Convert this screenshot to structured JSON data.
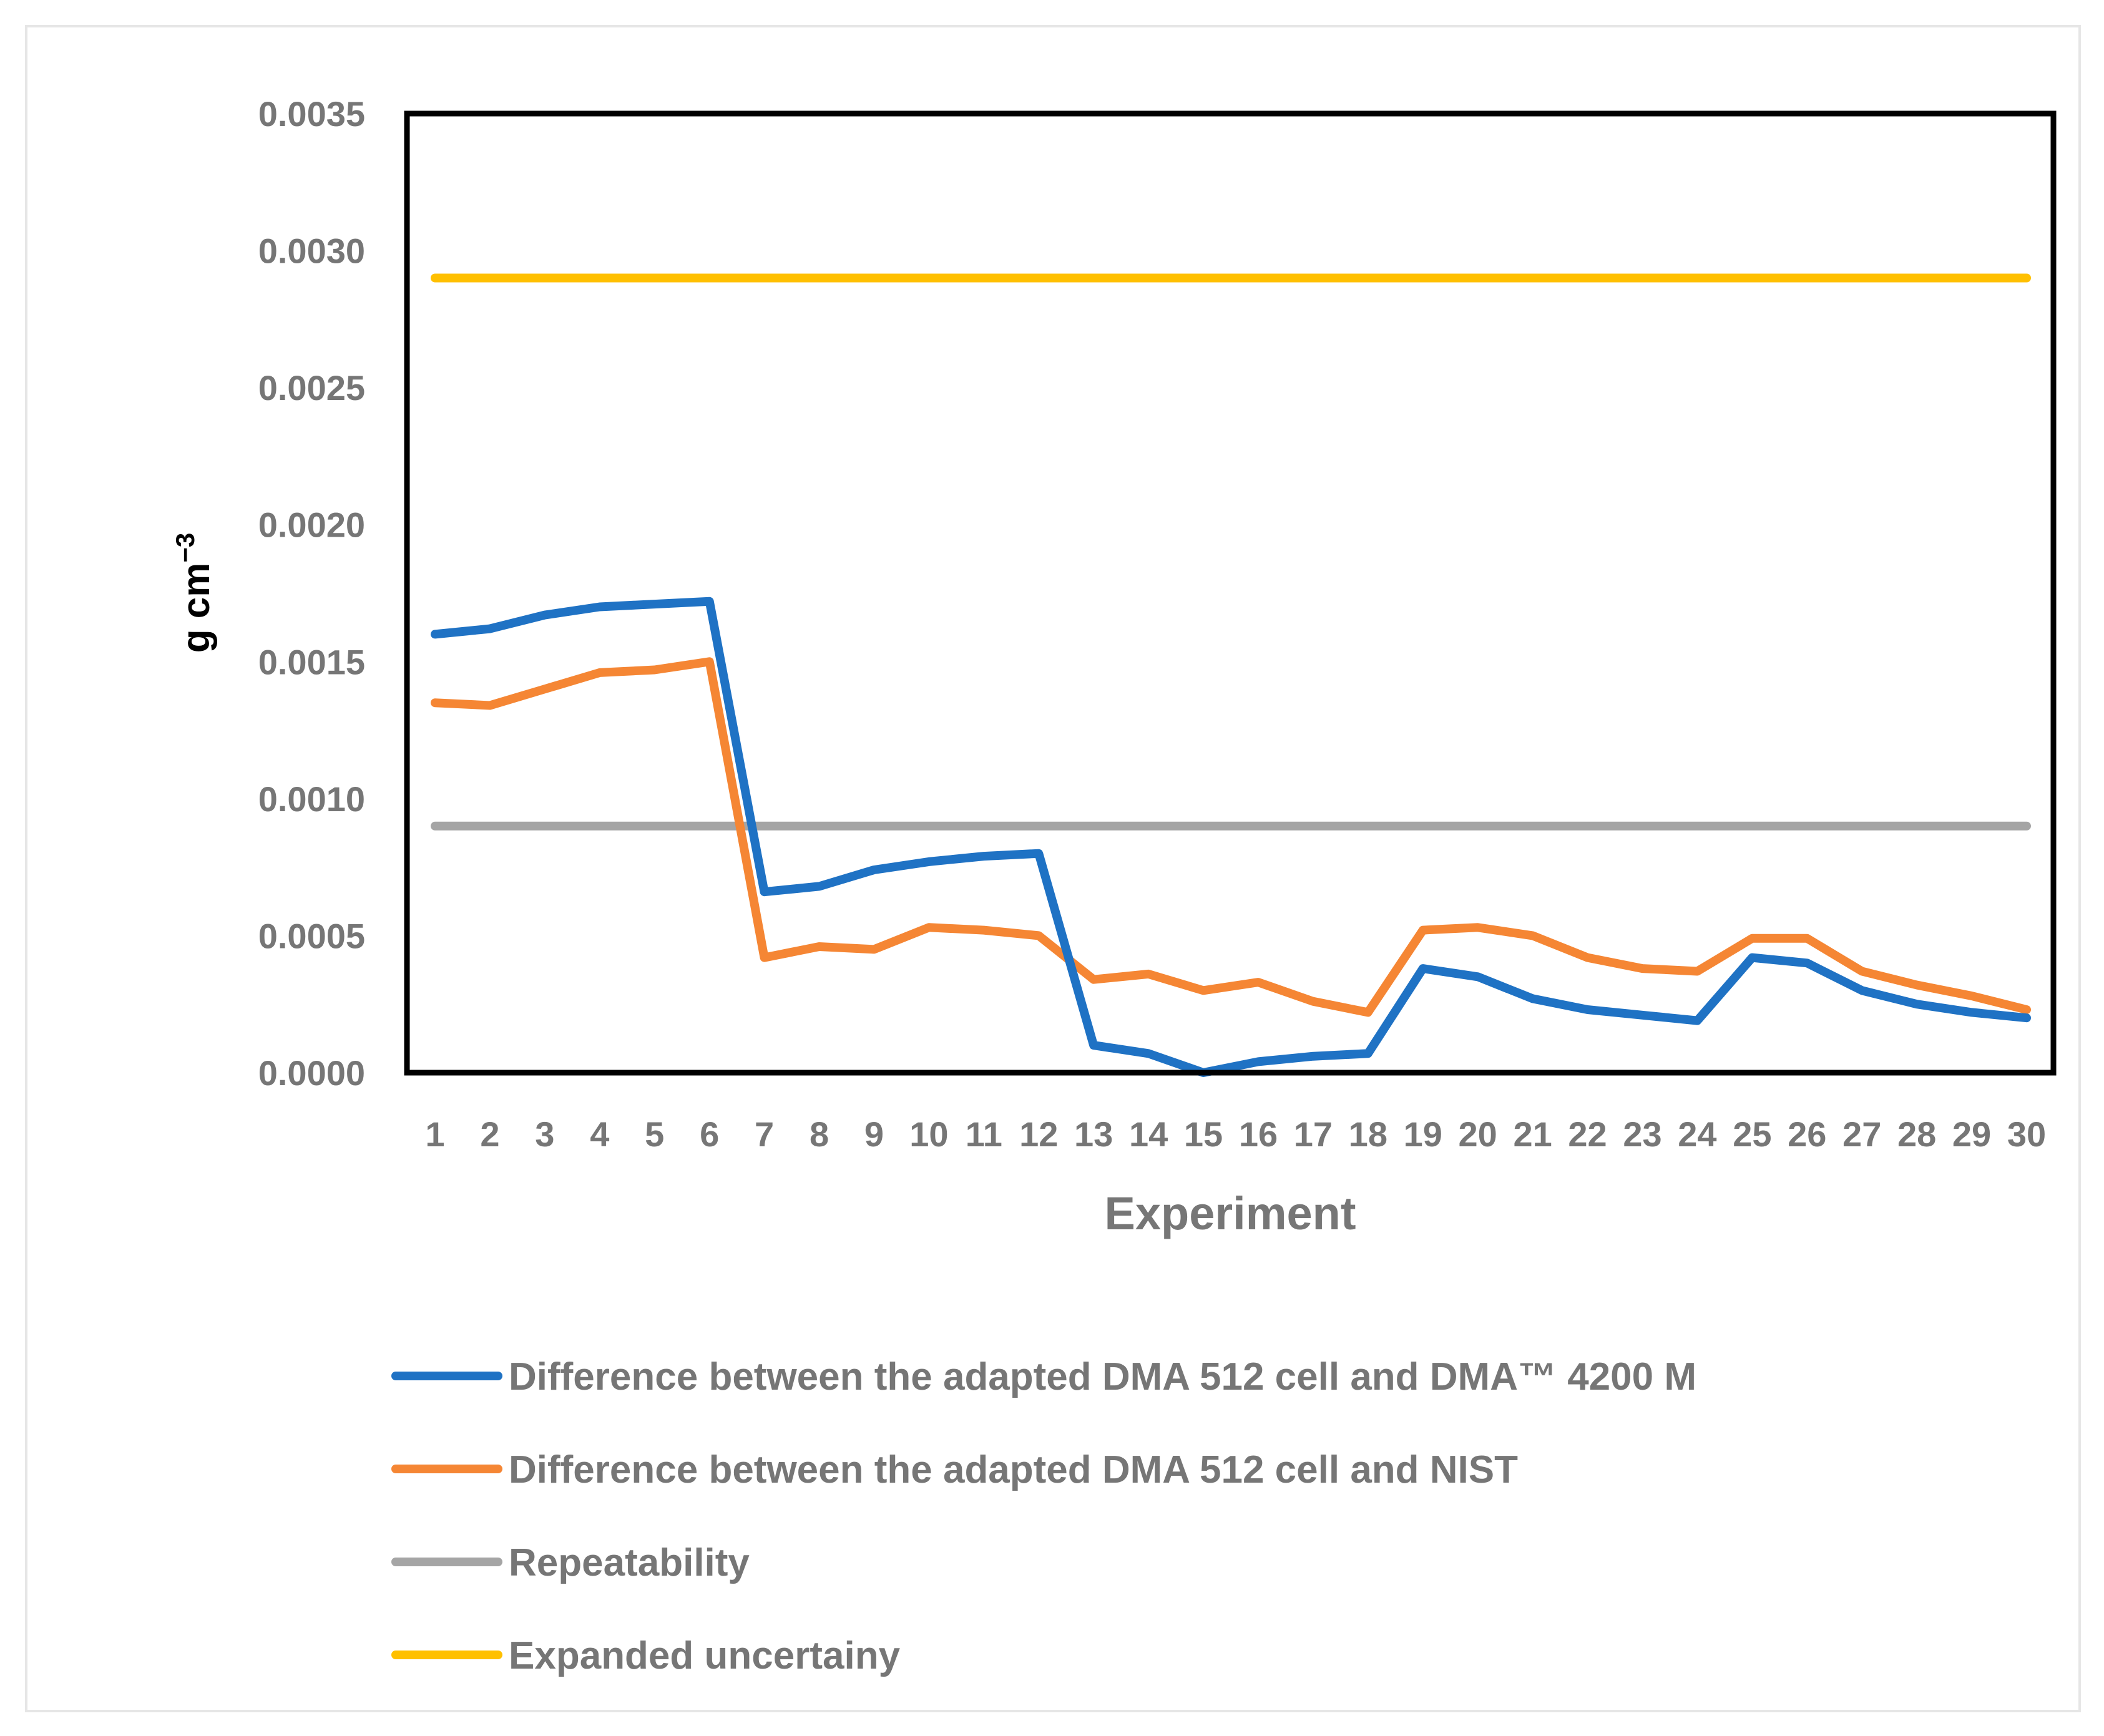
{
  "chart_data": {
    "type": "line",
    "title": "",
    "xlabel": "Experiment",
    "ylabel": "g cm",
    "ylabel_superscript": "−3",
    "ylim": [
      0,
      0.0035
    ],
    "yticks": [
      "0.0000",
      "0.0005",
      "0.0010",
      "0.0015",
      "0.0020",
      "0.0025",
      "0.0030",
      "0.0035"
    ],
    "ytick_values": [
      0,
      0.0005,
      0.001,
      0.0015,
      0.002,
      0.0025,
      0.003,
      0.0035
    ],
    "categories": [
      "1",
      "2",
      "3",
      "4",
      "5",
      "6",
      "7",
      "8",
      "9",
      "10",
      "11",
      "12",
      "13",
      "14",
      "15",
      "16",
      "17",
      "18",
      "19",
      "20",
      "21",
      "22",
      "23",
      "24",
      "25",
      "26",
      "27",
      "28",
      "29",
      "30"
    ],
    "legend_position": "bottom",
    "series": [
      {
        "name": "Difference between the adapted DMA 512 cell and DMA™ 4200 M",
        "color": "#1F72C4",
        "values": [
          0.0016,
          0.00162,
          0.00167,
          0.0017,
          0.00171,
          0.00172,
          0.00066,
          0.00068,
          0.00074,
          0.00077,
          0.00079,
          0.0008,
          0.0001,
          7e-05,
          0.0,
          4e-05,
          6e-05,
          7e-05,
          0.00038,
          0.00035,
          0.00027,
          0.00023,
          0.00021,
          0.00019,
          0.00042,
          0.0004,
          0.0003,
          0.00025,
          0.00022,
          0.0002
        ]
      },
      {
        "name": "Difference between the adapted DMA 512 cell and NIST",
        "color": "#F58634",
        "values": [
          0.00135,
          0.00134,
          0.0014,
          0.00146,
          0.00147,
          0.0015,
          0.00042,
          0.00046,
          0.00045,
          0.00053,
          0.00052,
          0.0005,
          0.00034,
          0.00036,
          0.0003,
          0.00033,
          0.00026,
          0.00022,
          0.00052,
          0.00053,
          0.0005,
          0.00042,
          0.00038,
          0.00037,
          0.00049,
          0.00049,
          0.00037,
          0.00032,
          0.00028,
          0.00023
        ]
      },
      {
        "name": "Repeatability",
        "color": "#A5A5A5",
        "values": [
          0.0009,
          0.0009,
          0.0009,
          0.0009,
          0.0009,
          0.0009,
          0.0009,
          0.0009,
          0.0009,
          0.0009,
          0.0009,
          0.0009,
          0.0009,
          0.0009,
          0.0009,
          0.0009,
          0.0009,
          0.0009,
          0.0009,
          0.0009,
          0.0009,
          0.0009,
          0.0009,
          0.0009,
          0.0009,
          0.0009,
          0.0009,
          0.0009,
          0.0009,
          0.0009
        ]
      },
      {
        "name": "Expanded uncertainy",
        "color": "#FFC000",
        "values": [
          0.0029,
          0.0029,
          0.0029,
          0.0029,
          0.0029,
          0.0029,
          0.0029,
          0.0029,
          0.0029,
          0.0029,
          0.0029,
          0.0029,
          0.0029,
          0.0029,
          0.0029,
          0.0029,
          0.0029,
          0.0029,
          0.0029,
          0.0029,
          0.0029,
          0.0029,
          0.0029,
          0.0029,
          0.0029,
          0.0029,
          0.0029,
          0.0029,
          0.0029,
          0.0029
        ]
      }
    ]
  }
}
